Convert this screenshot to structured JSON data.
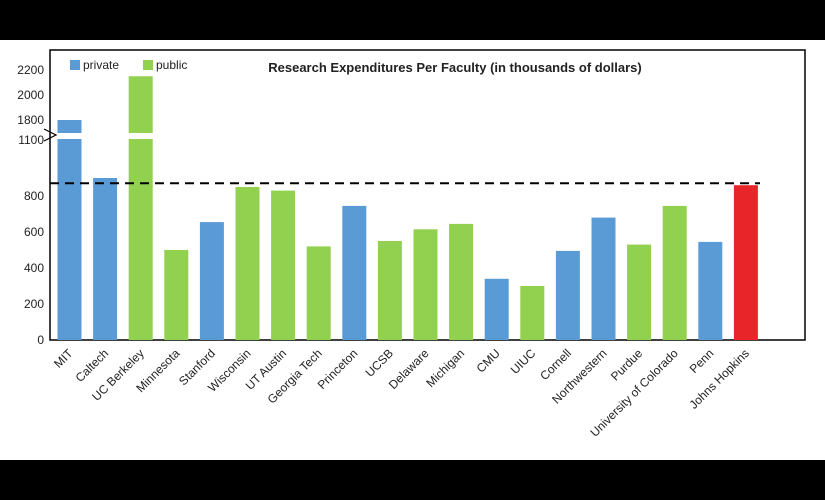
{
  "chart_data": {
    "type": "bar",
    "title": "Research Expenditures Per Faculty (in thousands of dollars)",
    "xlabel": "",
    "ylabel": "",
    "legend": {
      "placement": "top-left",
      "entries": [
        {
          "name": "private",
          "color": "#5b9bd5"
        },
        {
          "name": "public",
          "color": "#92d050"
        }
      ]
    },
    "highlight_color": "#e8262a",
    "axis_break": {
      "from": 900,
      "to": 1100
    },
    "reference_line": {
      "y": 860,
      "style": "dashed"
    },
    "yticks": [
      0,
      200,
      400,
      600,
      800,
      1100,
      1800,
      2000,
      2200
    ],
    "ylim": [
      0,
      2200
    ],
    "categories": [
      "MIT",
      "Caltech",
      "UC Berkeley",
      "Minnesota",
      "Stanford",
      "Wisconsin",
      "UT Austin",
      "Georgia Tech",
      "Princeton",
      "UCSB",
      "Delaware",
      "Michigan",
      "CMU",
      "UIUC",
      "Cornell",
      "Northwestern",
      "Purdue",
      "University of Colorado",
      "Penn",
      "Johns Hopkins"
    ],
    "values": [
      1800,
      1050,
      2150,
      500,
      655,
      850,
      830,
      520,
      745,
      550,
      615,
      645,
      340,
      300,
      495,
      680,
      530,
      745,
      545,
      860
    ],
    "groups": [
      "private",
      "private",
      "public",
      "public",
      "private",
      "public",
      "public",
      "public",
      "private",
      "public",
      "public",
      "public",
      "private",
      "public",
      "private",
      "private",
      "public",
      "public",
      "private",
      "highlight"
    ],
    "grid": false
  }
}
